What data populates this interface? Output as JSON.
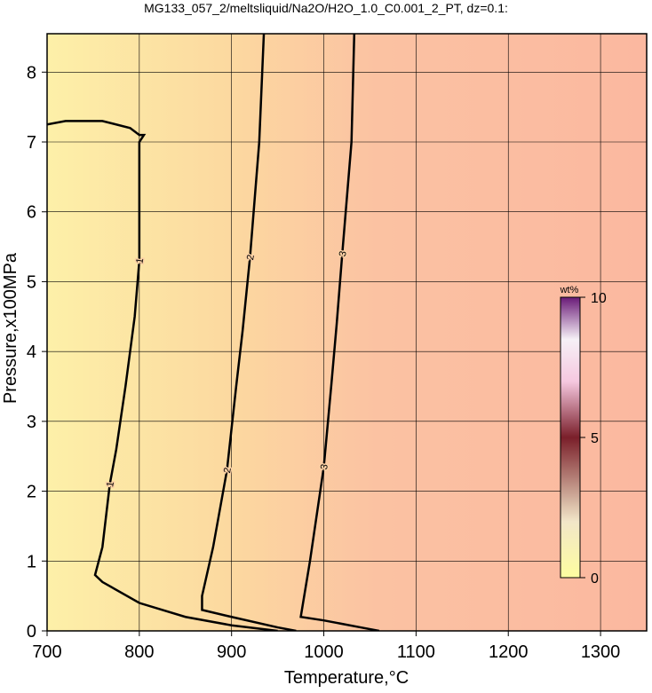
{
  "chart_data": {
    "type": "contour",
    "title": "MG133_057_2/meltsliquid/Na2O/H2O_1.0_C0.001_2_PT, dz=0.1:",
    "x_label": "Temperature,°C",
    "y_label": "Pressure,x100MPa",
    "xlim": [
      700,
      1350
    ],
    "ylim": [
      0,
      8.55
    ],
    "xticks": [
      700,
      800,
      900,
      1000,
      1100,
      1200,
      1300
    ],
    "yticks": [
      0,
      1,
      2,
      3,
      4,
      5,
      6,
      7,
      8
    ],
    "grid": true,
    "colorbar": {
      "label": "wt%",
      "lim": [
        0,
        10
      ],
      "ticks": [
        0,
        5,
        10
      ]
    },
    "contours": [
      {
        "level": 1,
        "color": "#000000",
        "x": [
          700,
          720,
          760,
          790,
          800,
          805,
          800,
          800,
          795,
          785,
          775,
          768,
          760,
          752,
          760,
          800,
          850,
          900,
          950
        ],
        "y": [
          7.25,
          7.3,
          7.3,
          7.2,
          7.1,
          7.1,
          7.0,
          5.3,
          4.5,
          3.5,
          2.6,
          2.1,
          1.2,
          0.8,
          0.7,
          0.4,
          0.2,
          0.08,
          0
        ]
      },
      {
        "level": 2,
        "color": "#000000",
        "x": [
          935,
          930,
          920,
          912,
          905,
          895,
          880,
          868,
          868,
          900,
          950,
          970
        ],
        "y": [
          8.55,
          7.0,
          5.35,
          4.3,
          3.5,
          2.3,
          1.2,
          0.5,
          0.3,
          0.2,
          0.05,
          0
        ]
      },
      {
        "level": 3,
        "color": "#000000",
        "x": [
          1033,
          1030,
          1020,
          1014,
          1008,
          1000,
          985,
          975,
          1000,
          1040,
          1060
        ],
        "y": [
          8.55,
          7.0,
          5.4,
          4.4,
          3.5,
          2.35,
          1.0,
          0.2,
          0.15,
          0.05,
          0
        ]
      }
    ]
  }
}
